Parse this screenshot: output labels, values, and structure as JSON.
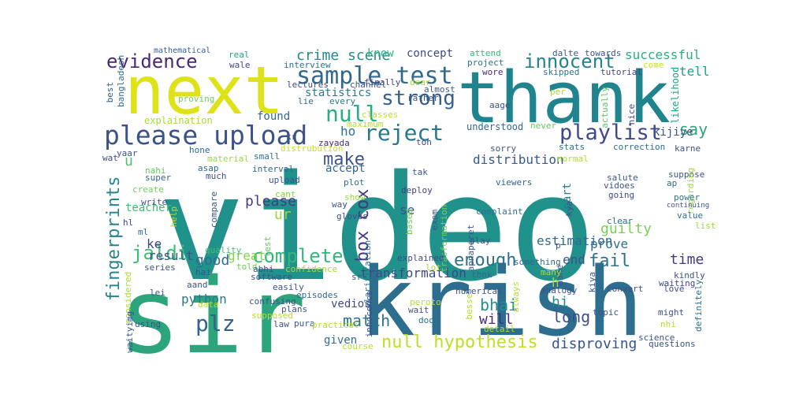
{
  "words": [
    {
      "text": "video",
      "color": "#21918c"
    },
    {
      "text": "sir",
      "color": "#2ca57d"
    },
    {
      "text": "krish",
      "color": "#2d6d8e"
    },
    {
      "text": "thank",
      "color": "#1f848d"
    },
    {
      "text": "next",
      "color": "#dde318"
    },
    {
      "text": "please upload",
      "color": "#3b528b"
    },
    {
      "text": "sample test",
      "color": "#31688e"
    },
    {
      "text": "null hypothesis",
      "color": "#bddf26"
    },
    {
      "text": "evidence",
      "color": "#482878"
    },
    {
      "text": "innocent",
      "color": "#26828e"
    },
    {
      "text": "playlist",
      "color": "#3e4a89"
    },
    {
      "text": "reject",
      "color": "#2a788e"
    },
    {
      "text": "strong",
      "color": "#355f8d"
    },
    {
      "text": "null",
      "color": "#27ad81"
    },
    {
      "text": "complete",
      "color": "#35b779"
    },
    {
      "text": "fingerprints",
      "color": "#25858e"
    },
    {
      "text": "jaldi",
      "color": "#3fbc73"
    },
    {
      "text": "plz",
      "color": "#33638d"
    },
    {
      "text": "crime scene",
      "color": "#238a8d"
    },
    {
      "text": "make",
      "color": "#3b528b"
    },
    {
      "text": "distribution",
      "color": "#38598c"
    },
    {
      "text": "successful",
      "color": "#29af7f"
    },
    {
      "text": "box cox",
      "color": "#453781"
    },
    {
      "text": "fail",
      "color": "#2c728e"
    },
    {
      "text": "enough",
      "color": "#2e6f8e"
    },
    {
      "text": "transformation",
      "color": "#3f4889"
    },
    {
      "text": "disproving",
      "color": "#39568c"
    },
    {
      "text": "estimation",
      "color": "#30698e"
    },
    {
      "text": "guilty",
      "color": "#7ad151"
    },
    {
      "text": "time",
      "color": "#443a83"
    },
    {
      "text": "please",
      "color": "#433e85"
    },
    {
      "text": "say",
      "color": "#2ea37e"
    },
    {
      "text": "tell",
      "color": "#1fa088"
    },
    {
      "text": "good",
      "color": "#2f6c8e"
    },
    {
      "text": "great",
      "color": "#84d44b"
    },
    {
      "text": "result",
      "color": "#3a538b"
    },
    {
      "text": "python",
      "color": "#2a788e"
    },
    {
      "text": "bhai",
      "color": "#21908d"
    },
    {
      "text": "long",
      "color": "#3c4f8a"
    },
    {
      "text": "will",
      "color": "#472c7a"
    },
    {
      "text": "prove",
      "color": "#2d708e"
    },
    {
      "text": "end",
      "color": "#3b528b"
    },
    {
      "text": "hi",
      "color": "#238a8d"
    },
    {
      "text": "match",
      "color": "#2c738e"
    },
    {
      "text": "vedios",
      "color": "#3e4c8a"
    },
    {
      "text": "given",
      "color": "#2e6e8e"
    },
    {
      "text": "ur",
      "color": "#95d840"
    },
    {
      "text": "se",
      "color": "#3b528b"
    },
    {
      "text": "found",
      "color": "#31678e"
    },
    {
      "text": "accept",
      "color": "#33638d"
    },
    {
      "text": "statistics",
      "color": "#2a788e"
    },
    {
      "text": "concept",
      "color": "#3f4889"
    },
    {
      "text": "know",
      "color": "#2fb47c"
    },
    {
      "text": "teacher",
      "color": "#3dbc74"
    },
    {
      "text": "kijiye",
      "color": "#3a548c"
    },
    {
      "text": "u",
      "color": "#50c46a"
    },
    {
      "text": "ke",
      "color": "#3f4788"
    },
    {
      "text": "ho",
      "color": "#2a768e"
    },
    {
      "text": "h",
      "color": "#9fda3a"
    },
    {
      "text": "part",
      "color": "#287c8e"
    },
    {
      "text": "explaination",
      "color": "#a8db34"
    },
    {
      "text": "understood",
      "color": "#31688e"
    },
    {
      "text": "mathematical",
      "color": "#355e8d"
    },
    {
      "text": "real",
      "color": "#20a386"
    },
    {
      "text": "wale",
      "color": "#3e4989"
    },
    {
      "text": "interview",
      "color": "#2c718e"
    },
    {
      "text": "finally",
      "color": "#424086"
    },
    {
      "text": "dear",
      "color": "#a2da37"
    },
    {
      "text": "attend",
      "color": "#35b779"
    },
    {
      "text": "project",
      "color": "#2c728e"
    },
    {
      "text": "dalte",
      "color": "#39568c"
    },
    {
      "text": "towards",
      "color": "#3b528b"
    },
    {
      "text": "come",
      "color": "#cae11f"
    },
    {
      "text": "tutorial",
      "color": "#414487"
    },
    {
      "text": "wore",
      "color": "#472d7b"
    },
    {
      "text": "skipped",
      "color": "#2d708e"
    },
    {
      "text": "bangladesh",
      "color": "#2e6f8e"
    },
    {
      "text": "best",
      "color": "#33638d"
    },
    {
      "text": "lectures",
      "color": "#3e4a89"
    },
    {
      "text": "channel",
      "color": "#3b528b"
    },
    {
      "text": "almost",
      "color": "#38598c"
    },
    {
      "text": "proving",
      "color": "#6ece58"
    },
    {
      "text": "lie",
      "color": "#31688e"
    },
    {
      "text": "rather",
      "color": "#3b528b"
    },
    {
      "text": "every",
      "color": "#2c738e"
    },
    {
      "text": "classes",
      "color": "#c2df23"
    },
    {
      "text": "maximum",
      "color": "#b5de2b"
    },
    {
      "text": "aage",
      "color": "#3a548c"
    },
    {
      "text": "per",
      "color": "#addc30"
    },
    {
      "text": "nice",
      "color": "#414487"
    },
    {
      "text": "actually",
      "color": "#58c765"
    },
    {
      "text": "likelihood",
      "color": "#1fa287"
    },
    {
      "text": "zayada",
      "color": "#472d7b"
    },
    {
      "text": "kr",
      "color": "#3b528b"
    },
    {
      "text": "distrubution",
      "color": "#c8e020"
    },
    {
      "text": "toh",
      "color": "#3e4989"
    },
    {
      "text": "sorry",
      "color": "#3b528b"
    },
    {
      "text": "never",
      "color": "#65cb5e"
    },
    {
      "text": "stats",
      "color": "#2c718e"
    },
    {
      "text": "correction",
      "color": "#2e6d8e"
    },
    {
      "text": "karne",
      "color": "#3b528b"
    },
    {
      "text": "yaar",
      "color": "#3b528b"
    },
    {
      "text": "hone",
      "color": "#31688e"
    },
    {
      "text": "wat",
      "color": "#3e4a89"
    },
    {
      "text": "material",
      "color": "#9bd93c"
    },
    {
      "text": "small",
      "color": "#2d708e"
    },
    {
      "text": "nahi",
      "color": "#5ec962"
    },
    {
      "text": "asap",
      "color": "#31688e"
    },
    {
      "text": "super",
      "color": "#31688e"
    },
    {
      "text": "much",
      "color": "#3b528b"
    },
    {
      "text": "interval",
      "color": "#32648e"
    },
    {
      "text": "upload",
      "color": "#3b528b"
    },
    {
      "text": "create",
      "color": "#73d056"
    },
    {
      "text": "compare",
      "color": "#38598c"
    },
    {
      "text": "write",
      "color": "#3b528b"
    },
    {
      "text": "cant",
      "color": "#7fd34e"
    },
    {
      "text": "plot",
      "color": "#2f6c8e"
    },
    {
      "text": "show",
      "color": "#95d840"
    },
    {
      "text": "way",
      "color": "#3b528b"
    },
    {
      "text": "gloves",
      "color": "#3b528b"
    },
    {
      "text": "help",
      "color": "#b8de29"
    },
    {
      "text": "hl",
      "color": "#414487"
    },
    {
      "text": "ml",
      "color": "#31688e"
    },
    {
      "text": "quality",
      "color": "#45bf70"
    },
    {
      "text": "test",
      "color": "#66cb5d"
    },
    {
      "text": "tak",
      "color": "#3b528b"
    },
    {
      "text": "deploy",
      "color": "#424086"
    },
    {
      "text": "apnaparet",
      "color": "#38598c"
    },
    {
      "text": "kya",
      "color": "#3b528b"
    },
    {
      "text": "trasformation",
      "color": "#73d056"
    },
    {
      "text": "viewers",
      "color": "#33638d"
    },
    {
      "text": "salute",
      "color": "#38598c"
    },
    {
      "text": "vidoes",
      "color": "#3b528b"
    },
    {
      "text": "going",
      "color": "#3e4a89"
    },
    {
      "text": "suppose",
      "color": "#3b528b"
    },
    {
      "text": "regarding",
      "color": "#9fda3a"
    },
    {
      "text": "ap",
      "color": "#2e6e8e"
    },
    {
      "text": "power",
      "color": "#2d718e"
    },
    {
      "text": "continuing",
      "color": "#3b528b"
    },
    {
      "text": "value",
      "color": "#2c738e"
    },
    {
      "text": "list",
      "color": "#9bd93c"
    },
    {
      "text": "clear",
      "color": "#31688e"
    },
    {
      "text": "normal",
      "color": "#b0dd2f"
    },
    {
      "text": "based",
      "color": "#6ece58"
    },
    {
      "text": "exam",
      "color": "#3b528b"
    },
    {
      "text": "complaint",
      "color": "#2c728e"
    },
    {
      "text": "play",
      "color": "#3b528b"
    },
    {
      "text": "clarification",
      "color": "#2d718e"
    },
    {
      "text": "p",
      "color": "#3b528b"
    },
    {
      "text": "kindly",
      "color": "#3b528b"
    },
    {
      "text": "waiting",
      "color": "#414487"
    },
    {
      "text": "definitely",
      "color": "#2c718e"
    },
    {
      "text": "something",
      "color": "#31688e"
    },
    {
      "text": "nahe",
      "color": "#3b528b"
    },
    {
      "text": "many",
      "color": "#b5de2b"
    },
    {
      "text": "told",
      "color": "#6ece58"
    },
    {
      "text": "abhi",
      "color": "#3b528b"
    },
    {
      "text": "software",
      "color": "#3b528b"
    },
    {
      "text": "confidence",
      "color": "#a0da39"
    },
    {
      "text": "explained",
      "color": "#3e4a89"
    },
    {
      "text": "lot",
      "color": "#b0dd2f"
    },
    {
      "text": "series",
      "color": "#3b528b"
    },
    {
      "text": "considered",
      "color": "#a8db34"
    },
    {
      "text": "aand",
      "color": "#3b528b"
    },
    {
      "text": "lei",
      "color": "#3b528b"
    },
    {
      "text": "hai",
      "color": "#3b528b"
    },
    {
      "text": "confusing",
      "color": "#3b528b"
    },
    {
      "text": "easily",
      "color": "#3b528b"
    },
    {
      "text": "episodes",
      "color": "#31688e"
    },
    {
      "text": "innocence",
      "color": "#3e4a89"
    },
    {
      "text": "numerical",
      "color": "#3b528b"
    },
    {
      "text": "analogy",
      "color": "#3b528b"
    },
    {
      "text": "kiya",
      "color": "#3b528b"
    },
    {
      "text": "convert",
      "color": "#3b528b"
    },
    {
      "text": "love",
      "color": "#3b528b"
    },
    {
      "text": "bessel",
      "color": "#b5de2b"
    },
    {
      "text": "thnk",
      "color": "#31688e"
    },
    {
      "text": "always",
      "color": "#b5de2b"
    },
    {
      "text": "topic",
      "color": "#3b528b"
    },
    {
      "text": "might",
      "color": "#3b528b"
    },
    {
      "text": "data",
      "color": "#b5de2b"
    },
    {
      "text": "plans",
      "color": "#3b528b"
    },
    {
      "text": "supposed",
      "color": "#b5de2b"
    },
    {
      "text": "peroto",
      "color": "#b5de2b"
    },
    {
      "text": "wait",
      "color": "#3b528b"
    },
    {
      "text": "doo",
      "color": "#2c738e"
    },
    {
      "text": "detail",
      "color": "#b5de2b"
    },
    {
      "text": "using",
      "color": "#3b528b"
    },
    {
      "text": "waityimg",
      "color": "#3b528b"
    },
    {
      "text": "law",
      "color": "#3b528b"
    },
    {
      "text": "pura",
      "color": "#3b528b"
    },
    {
      "text": "practical",
      "color": "#b5de2b"
    },
    {
      "text": "course",
      "color": "#b5de2b"
    },
    {
      "text": "sr",
      "color": "#3b528b"
    },
    {
      "text": "science",
      "color": "#3b528b"
    },
    {
      "text": "nhi",
      "color": "#b5de2b"
    },
    {
      "text": "questions",
      "color": "#3b528b"
    }
  ]
}
